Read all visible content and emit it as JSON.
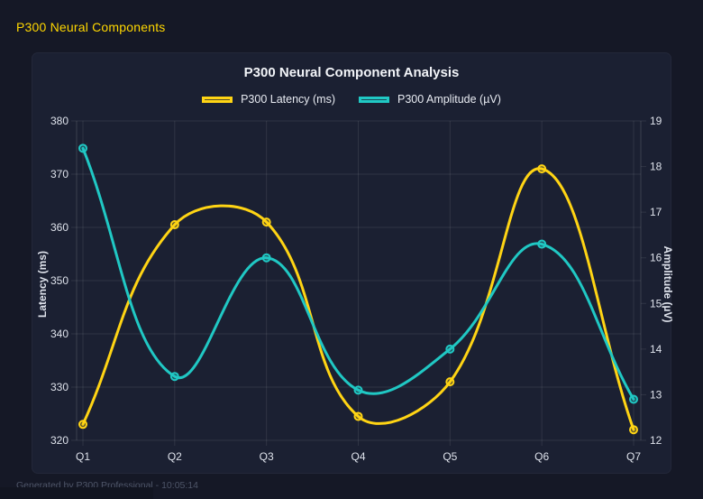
{
  "page": {
    "header_title": "P300 Neural Components",
    "footer_text": "Generated by P300 Professional - 10:05:14"
  },
  "colors": {
    "page_bg": "#151826",
    "card_bg": "#1B2032",
    "header_text": "#FFD700",
    "title_text": "#F2F4F8",
    "tick_text": "#DFE3EC",
    "footer_text": "#4E5568",
    "grid": "rgba(255,255,255,0.09)",
    "axis_border": "rgba(255,255,255,0.14)",
    "latency_yellow": "#FFD414",
    "amplitude_teal": "#20C8C4"
  },
  "chart_data": {
    "type": "line",
    "title": "P300 Neural Component Analysis",
    "categories": [
      "Q1",
      "Q2",
      "Q3",
      "Q4",
      "Q5",
      "Q6",
      "Q7"
    ],
    "series": [
      {
        "name": "P300 Latency (ms)",
        "axis": "left",
        "color": "#FFD414",
        "values": [
          323,
          360.5,
          361,
          324.5,
          331,
          371,
          322
        ]
      },
      {
        "name": "P300 Amplitude (µV)",
        "axis": "right",
        "color": "#20C8C4",
        "values": [
          18.4,
          13.4,
          16,
          13.1,
          14,
          16.3,
          12.9
        ]
      }
    ],
    "axes": {
      "left": {
        "label": "Latency (ms)",
        "min": 320,
        "max": 380,
        "ticks": [
          320,
          330,
          340,
          350,
          360,
          370,
          380
        ]
      },
      "right": {
        "label": "Amplitude (µV)",
        "min": 12,
        "max": 19,
        "ticks": [
          12,
          13,
          14,
          15,
          16,
          17,
          18,
          19
        ]
      }
    },
    "legend_position": "top",
    "grid": true,
    "line_tension": 0.4,
    "point_radius": 4,
    "line_width": 3
  }
}
